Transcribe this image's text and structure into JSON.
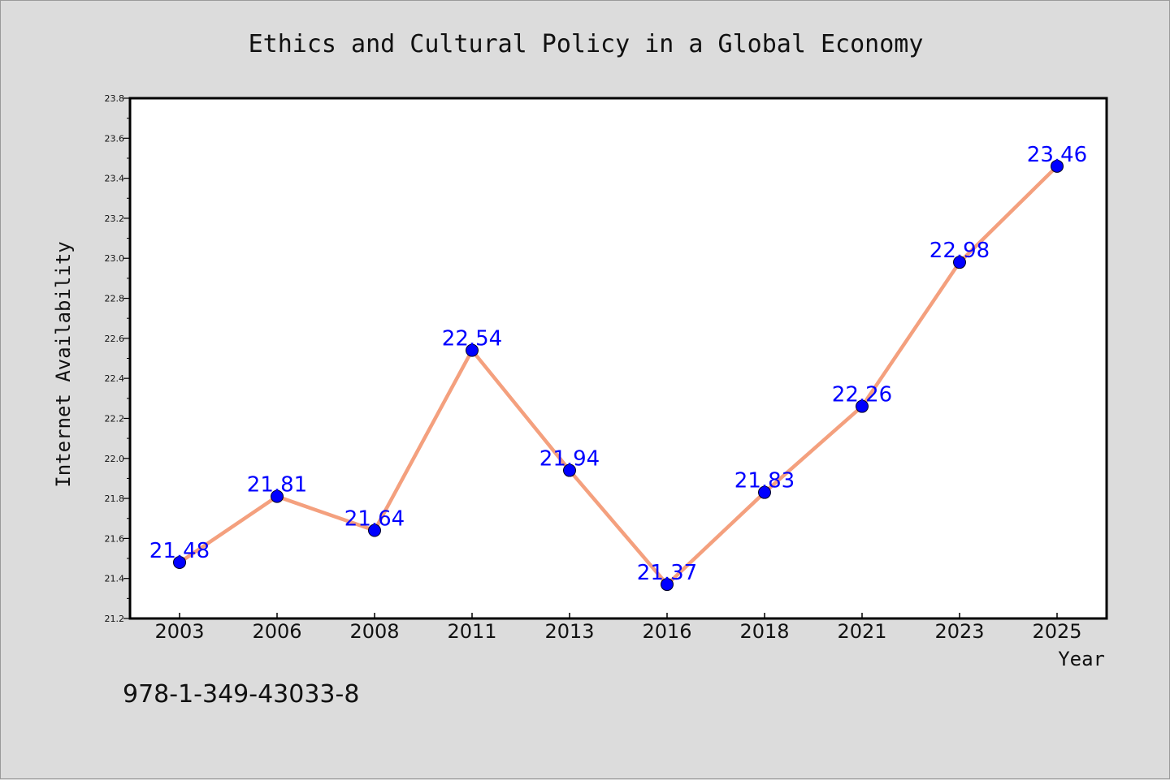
{
  "chart_data": {
    "type": "line",
    "title": "Ethics and Cultural Policy in a Global Economy",
    "xlabel": "Year",
    "ylabel": "Internet Availability",
    "categories": [
      "2003",
      "2006",
      "2008",
      "2011",
      "2013",
      "2016",
      "2018",
      "2021",
      "2023",
      "2025"
    ],
    "values": [
      21.48,
      21.81,
      21.64,
      22.54,
      21.94,
      21.37,
      21.83,
      22.26,
      22.98,
      23.46
    ],
    "data_labels": [
      "21.48",
      "21.81",
      "21.64",
      "22.54",
      "21.94",
      "21.37",
      "21.83",
      "22.26",
      "22.98",
      "23.46"
    ],
    "ylim": [
      21.2,
      23.8
    ],
    "yticks": [
      "21.2",
      "21.4",
      "21.6",
      "21.8",
      "22.0",
      "22.2",
      "22.4",
      "22.6",
      "22.8",
      "23.0",
      "23.2",
      "23.4",
      "23.6",
      "23.8"
    ],
    "grid": false,
    "line_color": "#f4a07e",
    "marker_color": "#0000ff",
    "label_color": "#0000ff"
  },
  "footer": {
    "isbn": "978-1-349-43033-8"
  }
}
